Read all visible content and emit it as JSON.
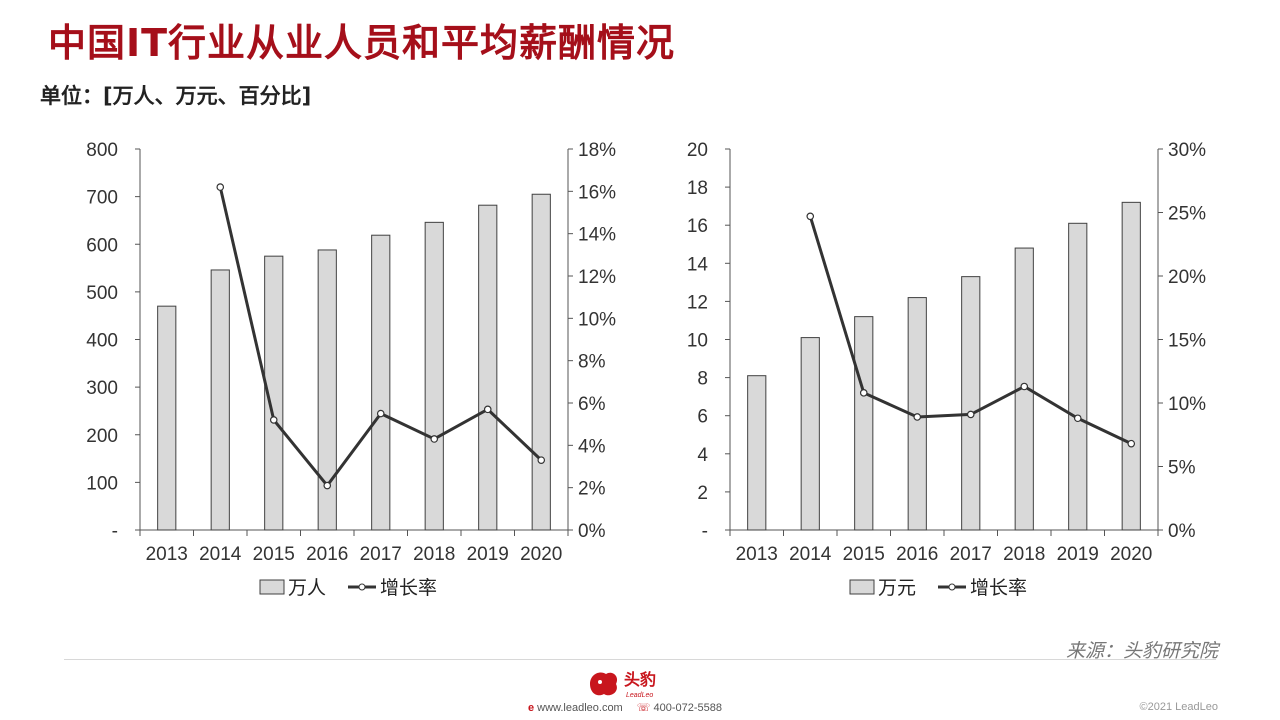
{
  "title": "中国IT行业从业人员和平均薪酬情况",
  "unit": "单位：[万人、万元、百分比]",
  "chart_data": [
    {
      "type": "bar",
      "categories": [
        "2013",
        "2014",
        "2015",
        "2016",
        "2017",
        "2018",
        "2019",
        "2020"
      ],
      "series": [
        {
          "name": "万人",
          "type": "bar",
          "axis": "left",
          "values": [
            470,
            546,
            575,
            588,
            619,
            646,
            682,
            705
          ]
        },
        {
          "name": "增长率",
          "type": "line",
          "axis": "right",
          "values": [
            null,
            16.2,
            5.2,
            2.1,
            5.5,
            4.3,
            5.7,
            3.3
          ]
        }
      ],
      "ylim": [
        0,
        800
      ],
      "yticks": [
        "-",
        "100",
        "200",
        "300",
        "400",
        "500",
        "600",
        "700",
        "800"
      ],
      "y2lim": [
        0,
        18
      ],
      "y2ticks": [
        "0%",
        "2%",
        "4%",
        "6%",
        "8%",
        "10%",
        "12%",
        "14%",
        "16%",
        "18%"
      ],
      "legend": "bottom"
    },
    {
      "type": "bar",
      "categories": [
        "2013",
        "2014",
        "2015",
        "2016",
        "2017",
        "2018",
        "2019",
        "2020"
      ],
      "series": [
        {
          "name": "万元",
          "type": "bar",
          "axis": "left",
          "values": [
            8.1,
            10.1,
            11.2,
            12.2,
            13.3,
            14.8,
            16.1,
            17.2
          ]
        },
        {
          "name": "增长率",
          "type": "line",
          "axis": "right",
          "values": [
            null,
            24.7,
            10.8,
            8.9,
            9.1,
            11.3,
            8.8,
            6.8
          ]
        }
      ],
      "ylim": [
        0,
        20
      ],
      "yticks": [
        "-",
        "2",
        "4",
        "6",
        "8",
        "10",
        "12",
        "14",
        "16",
        "18",
        "20"
      ],
      "y2lim": [
        0,
        30
      ],
      "y2ticks": [
        "0%",
        "5%",
        "10%",
        "15%",
        "20%",
        "25%",
        "30%"
      ],
      "legend": "bottom"
    }
  ],
  "source": "来源：头豹研究院",
  "footer": {
    "logo_text": "头豹",
    "logo_sub": "LeadLeo",
    "website": "www.leadleo.com",
    "phone": "400-072-5588",
    "copyright": "©2021 LeadLeo"
  },
  "colors": {
    "title": "#a50f1a",
    "bar_fill": "#d9d9d9",
    "bar_stroke": "#404040",
    "line": "#333333",
    "brand": "#c8161d"
  }
}
